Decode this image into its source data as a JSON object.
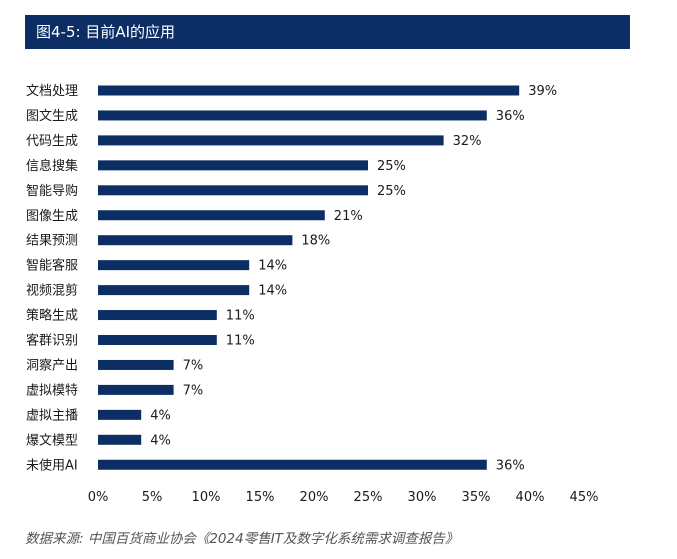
{
  "title": "图4-5: 目前AI的应用",
  "source": "数据来源: 中国百货商业协会《2024零售IT及数字化系统需求调查报告》",
  "colors": {
    "bar": "#0c2e64",
    "title_bg": "#0c2e64"
  },
  "chart_data": {
    "type": "bar",
    "orientation": "horizontal",
    "title": "目前AI的应用",
    "categories": [
      "文档处理",
      "图文生成",
      "代码生成",
      "信息搜集",
      "智能导购",
      "图像生成",
      "结果预测",
      "智能客服",
      "视频混剪",
      "策略生成",
      "客群识别",
      "洞察产出",
      "虚拟模特",
      "虚拟主播",
      "爆文模型",
      "未使用AI"
    ],
    "values": [
      39,
      36,
      32,
      25,
      25,
      21,
      18,
      14,
      14,
      11,
      11,
      7,
      7,
      4,
      4,
      36
    ],
    "value_labels": [
      "39%",
      "36%",
      "32%",
      "25%",
      "25%",
      "21%",
      "18%",
      "14%",
      "14%",
      "11%",
      "11%",
      "7%",
      "7%",
      "4%",
      "4%",
      "36%"
    ],
    "xlim": [
      0,
      45
    ],
    "xticks": [
      0,
      5,
      10,
      15,
      20,
      25,
      30,
      35,
      40,
      45
    ],
    "xtick_labels": [
      "0%",
      "5%",
      "10%",
      "15%",
      "20%",
      "25%",
      "30%",
      "35%",
      "40%",
      "45%"
    ],
    "xlabel": "",
    "ylabel": "",
    "grid": false
  }
}
